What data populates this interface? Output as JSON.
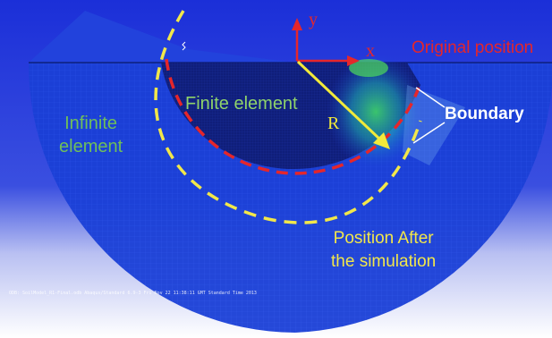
{
  "labels": {
    "infinite_element": "Infinite\nelement",
    "finite_element": "Finite element",
    "radius": "R",
    "x_axis": "x",
    "y_axis": "y",
    "original_position": "Original position",
    "boundary": "Boundary",
    "after_simulation": "Position After\nthe simulation"
  },
  "footer": "ODB: SoilModel_R1-Final.odb    Abaqus/Standard 6.9-3    Fri Nov 22 11:38:11 GMT Standard Time 2013",
  "colors": {
    "mesh_blue": "#1a3fd6",
    "mesh_dark": "#0d1f8a",
    "original_boundary": "#e5262b",
    "simulated_boundary": "#f2e74a",
    "radius_arrow": "#f2ea3a",
    "axes": "#e5262b"
  }
}
